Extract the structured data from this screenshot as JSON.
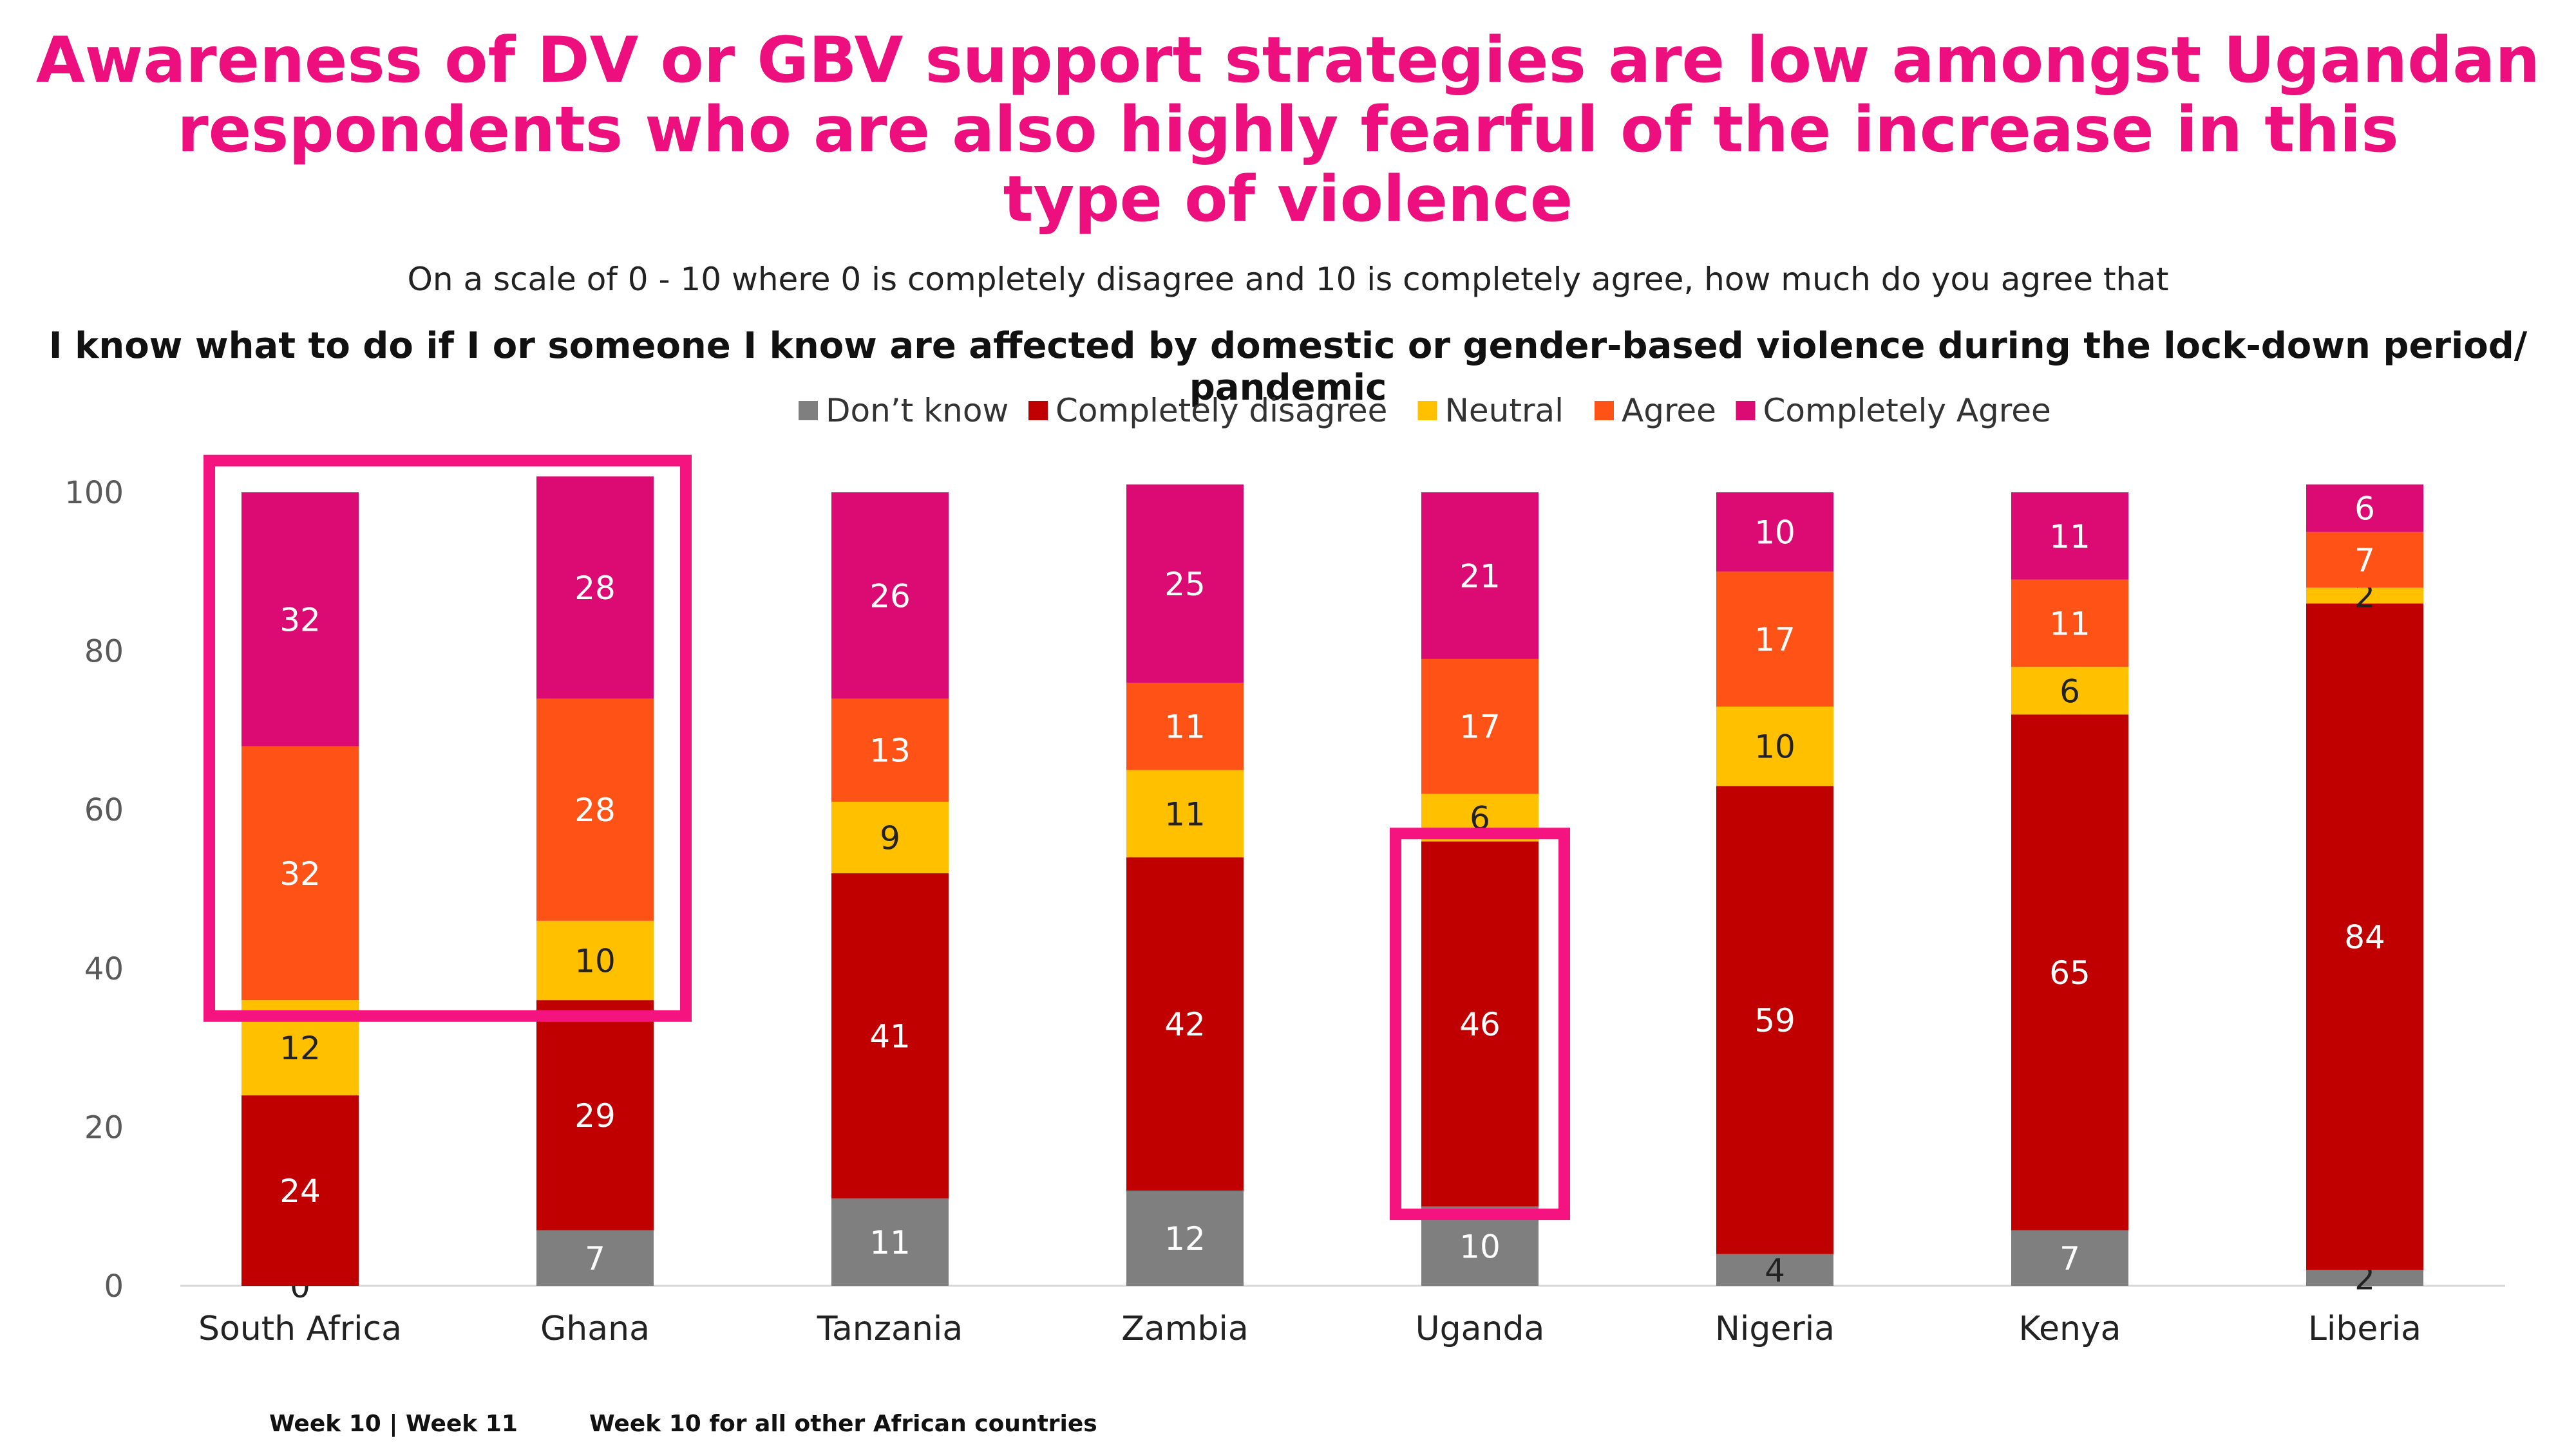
{
  "header": {
    "title_lines": [
      "Awareness of DV or GBV support strategies are low amongst Ugandan",
      "respondents who are also highly fearful of the increase in this",
      "type of violence"
    ],
    "subtitle": "On a scale of 0 - 10 where 0 is completely disagree and 10 is completely agree, how much do you agree that",
    "question": "I know what to do if I or someone I know are affected by domestic or gender-based violence during the lock-down period/ pandemic"
  },
  "colors": {
    "dont_know": "#7f7f7f",
    "completely_disagree": "#c00000",
    "neutral": "#ffc000",
    "agree": "#ff5216",
    "completely_agree": "#dc0a73",
    "highlight": "#f5147f"
  },
  "chart_data": {
    "type": "bar",
    "stacked": true,
    "categories": [
      "South Africa",
      "Ghana",
      "Tanzania",
      "Zambia",
      "Uganda",
      "Nigeria",
      "Kenya",
      "Liberia"
    ],
    "series": [
      {
        "name": "Don’t know",
        "color": "#7f7f7f",
        "values": [
          0,
          7,
          11,
          12,
          10,
          4,
          7,
          2
        ]
      },
      {
        "name": "Completely disagree",
        "color": "#c00000",
        "values": [
          24,
          29,
          41,
          42,
          46,
          59,
          65,
          84
        ]
      },
      {
        "name": "Neutral",
        "color": "#ffc000",
        "values": [
          12,
          10,
          9,
          11,
          6,
          10,
          6,
          2
        ]
      },
      {
        "name": "Agree",
        "color": "#ff5216",
        "values": [
          32,
          28,
          13,
          11,
          17,
          17,
          11,
          7
        ]
      },
      {
        "name": "Completely Agree",
        "color": "#dc0a73",
        "values": [
          32,
          28,
          26,
          25,
          21,
          10,
          11,
          6
        ]
      }
    ],
    "ylim": [
      0,
      100
    ],
    "yticks": [
      0,
      20,
      40,
      60,
      80,
      100
    ],
    "legend_position": "top",
    "grid": false,
    "highlights": [
      {
        "from_category": "South Africa",
        "to_category": "Ghana",
        "y_from": 34,
        "y_to": 104
      },
      {
        "from_category": "Uganda",
        "to_category": "Uganda",
        "y_from": 9,
        "y_to": 57
      }
    ]
  },
  "footnotes": {
    "left": "Week 10 | Week 11",
    "right": "Week 10 for all other African countries"
  }
}
